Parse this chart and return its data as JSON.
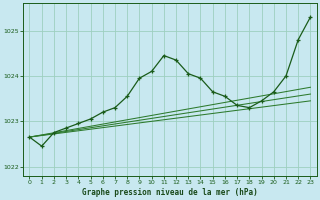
{
  "bg_color": "#c8e8f0",
  "plot_bg_color": "#c8e8f0",
  "grid_color": "#9ecfbf",
  "line_color_dark": "#1a5c1a",
  "line_color_mid": "#2d7a2d",
  "marker": "+",
  "xlabel": "Graphe pression niveau de la mer (hPa)",
  "xlabel_color": "#1a4a1a",
  "tick_color": "#1a5c1a",
  "xlim": [
    -0.5,
    23.5
  ],
  "ylim": [
    1021.8,
    1025.6
  ],
  "yticks": [
    1022,
    1023,
    1024,
    1025
  ],
  "xticks": [
    0,
    1,
    2,
    3,
    4,
    5,
    6,
    7,
    8,
    9,
    10,
    11,
    12,
    13,
    14,
    15,
    16,
    17,
    18,
    19,
    20,
    21,
    22,
    23
  ],
  "series_marked": {
    "x": [
      0,
      1,
      2,
      3,
      4,
      5,
      6,
      7,
      8,
      9,
      10,
      11,
      12,
      13,
      14,
      15,
      16,
      17,
      18,
      19,
      20,
      21,
      22,
      23
    ],
    "y": [
      1022.65,
      1022.45,
      1022.75,
      1022.85,
      1022.95,
      1023.05,
      1023.2,
      1023.3,
      1023.55,
      1023.95,
      1024.1,
      1024.45,
      1024.35,
      1024.05,
      1023.95,
      1023.65,
      1023.55,
      1023.35,
      1023.3,
      1023.45,
      1023.65,
      1024.0,
      1024.8,
      1025.3
    ]
  },
  "series_straight1": {
    "x": [
      0,
      23
    ],
    "y": [
      1022.65,
      1023.75
    ]
  },
  "series_straight2": {
    "x": [
      0,
      23
    ],
    "y": [
      1022.65,
      1023.6
    ]
  },
  "series_straight3": {
    "x": [
      0,
      23
    ],
    "y": [
      1022.65,
      1023.45
    ]
  }
}
